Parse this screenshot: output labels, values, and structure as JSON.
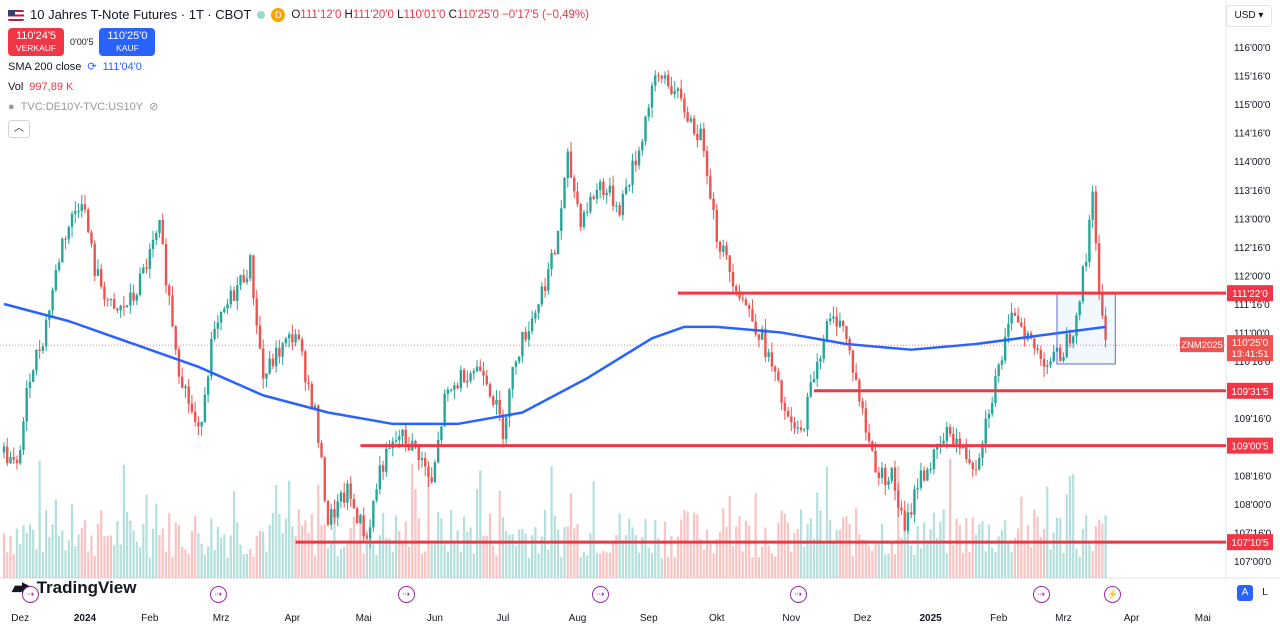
{
  "header": {
    "title": "10 Jahres T-Note Futures · 1T · CBOT",
    "badge": "D",
    "ohlc": {
      "o": "O",
      "o_val": "111'12'0",
      "h": "H",
      "h_val": "111'20'0",
      "l": "L",
      "l_val": "110'01'0",
      "c": "C",
      "c_val": "110'25'0",
      "chg": "−0'17'5 (−0,49%)"
    }
  },
  "trade": {
    "sell_price": "110'24'5",
    "sell_label": "VERKAUF",
    "spread": "0'00'5",
    "buy_price": "110'25'0",
    "buy_label": "KAUF"
  },
  "indicators": {
    "sma_label": "SMA 200 close",
    "sma_value": "111'04'0",
    "vol_label": "Vol",
    "vol_value": "997,89 K",
    "compare_label": "TVC:DE10Y-TVC:US10Y"
  },
  "currency": "USD",
  "logo_text": "TradingView",
  "scale_buttons": {
    "auto": "A",
    "log": "L"
  },
  "colors": {
    "up": "#26a69a",
    "down": "#ef5350",
    "sma": "#2962ff",
    "levels": "#f23645",
    "event": "#9c27b0"
  },
  "chart_data": {
    "type": "candlestick",
    "y_ticks": [
      "116'00'0",
      "115'16'0",
      "115'00'0",
      "114'16'0",
      "114'00'0",
      "113'16'0",
      "113'00'0",
      "112'16'0",
      "112'00'0",
      "111'16'0",
      "111'00'0",
      "110'16'0",
      "110'00'0",
      "109'16'0",
      "109'00'0",
      "108'16'0",
      "108'00'0",
      "107'16'0",
      "107'00'0"
    ],
    "y_tick_values": [
      116,
      115.5,
      115,
      114.5,
      114,
      113.5,
      113,
      112.5,
      112,
      111.5,
      111,
      110.5,
      110,
      109.5,
      109,
      108.5,
      108,
      107.5,
      107
    ],
    "x_labels": [
      "Dez",
      "2024",
      "Feb",
      "Mrz",
      "Apr",
      "Mai",
      "Jun",
      "Jul",
      "Aug",
      "Sep",
      "Okt",
      "Nov",
      "Dez",
      "2025",
      "Feb",
      "Mrz",
      "Apr",
      "Mai"
    ],
    "x_label_day_index": [
      5,
      25,
      45,
      67,
      89,
      111,
      133,
      154,
      177,
      199,
      220,
      243,
      265,
      286,
      307,
      327,
      348,
      370
    ],
    "price_path": [
      [
        0,
        108.9
      ],
      [
        4,
        108.6
      ],
      [
        8,
        110.3
      ],
      [
        12,
        110.9
      ],
      [
        18,
        112.6
      ],
      [
        24,
        113.4
      ],
      [
        28,
        112.1
      ],
      [
        34,
        111.3
      ],
      [
        40,
        111.6
      ],
      [
        48,
        112.8
      ],
      [
        54,
        110.4
      ],
      [
        60,
        109.2
      ],
      [
        64,
        110.8
      ],
      [
        70,
        111.6
      ],
      [
        76,
        112.2
      ],
      [
        80,
        110.2
      ],
      [
        84,
        110.6
      ],
      [
        90,
        111.0
      ],
      [
        96,
        109.6
      ],
      [
        100,
        107.7
      ],
      [
        106,
        108.2
      ],
      [
        112,
        107.4
      ],
      [
        116,
        108.6
      ],
      [
        122,
        109.2
      ],
      [
        128,
        108.9
      ],
      [
        132,
        108.3
      ],
      [
        136,
        109.8
      ],
      [
        142,
        110.3
      ],
      [
        148,
        110.4
      ],
      [
        154,
        109.3
      ],
      [
        158,
        110.6
      ],
      [
        164,
        111.4
      ],
      [
        170,
        112.4
      ],
      [
        174,
        114.0
      ],
      [
        178,
        113.0
      ],
      [
        184,
        113.6
      ],
      [
        190,
        113.2
      ],
      [
        196,
        114.2
      ],
      [
        200,
        115.3
      ],
      [
        204,
        115.5
      ],
      [
        210,
        114.9
      ],
      [
        216,
        114.3
      ],
      [
        220,
        112.7
      ],
      [
        224,
        112.1
      ],
      [
        228,
        111.6
      ],
      [
        234,
        110.9
      ],
      [
        238,
        110.2
      ],
      [
        242,
        109.4
      ],
      [
        246,
        109.2
      ],
      [
        250,
        110.3
      ],
      [
        254,
        111.1
      ],
      [
        258,
        111.3
      ],
      [
        262,
        110.4
      ],
      [
        266,
        109.3
      ],
      [
        270,
        108.5
      ],
      [
        274,
        108.5
      ],
      [
        278,
        107.5
      ],
      [
        282,
        108.4
      ],
      [
        286,
        108.7
      ],
      [
        292,
        109.3
      ],
      [
        296,
        108.9
      ],
      [
        300,
        108.7
      ],
      [
        304,
        109.7
      ],
      [
        308,
        110.6
      ],
      [
        312,
        111.4
      ],
      [
        318,
        110.7
      ],
      [
        322,
        110.5
      ],
      [
        326,
        110.6
      ],
      [
        330,
        111.1
      ],
      [
        334,
        112.3
      ],
      [
        336,
        113.6
      ],
      [
        338,
        111.6
      ],
      [
        340,
        110.8
      ]
    ],
    "sma_200": [
      [
        0,
        111.5
      ],
      [
        20,
        111.2
      ],
      [
        40,
        110.8
      ],
      [
        60,
        110.4
      ],
      [
        80,
        109.9
      ],
      [
        100,
        109.6
      ],
      [
        120,
        109.4
      ],
      [
        140,
        109.4
      ],
      [
        160,
        109.6
      ],
      [
        180,
        110.2
      ],
      [
        200,
        110.9
      ],
      [
        210,
        111.1
      ],
      [
        220,
        111.1
      ],
      [
        240,
        111.0
      ],
      [
        260,
        110.8
      ],
      [
        280,
        110.7
      ],
      [
        300,
        110.8
      ],
      [
        320,
        110.95
      ],
      [
        340,
        111.1
      ]
    ],
    "sma_last": "111'04'0",
    "horizontal_levels": [
      {
        "label": "111'22'0",
        "value": 111.69,
        "from_day": 208
      },
      {
        "label": "109'31'5",
        "value": 109.98,
        "from_day": 250
      },
      {
        "label": "109'00'5",
        "value": 109.02,
        "from_day": 110
      },
      {
        "label": "107'10'5",
        "value": 107.33,
        "from_day": 90
      }
    ],
    "last_price": {
      "label": "110'25'0",
      "value": 110.78,
      "symbol": "ZNM2025",
      "countdown": "13:41:51"
    },
    "event_markers_day_index": [
      8,
      66,
      124,
      184,
      245,
      320,
      342
    ]
  }
}
